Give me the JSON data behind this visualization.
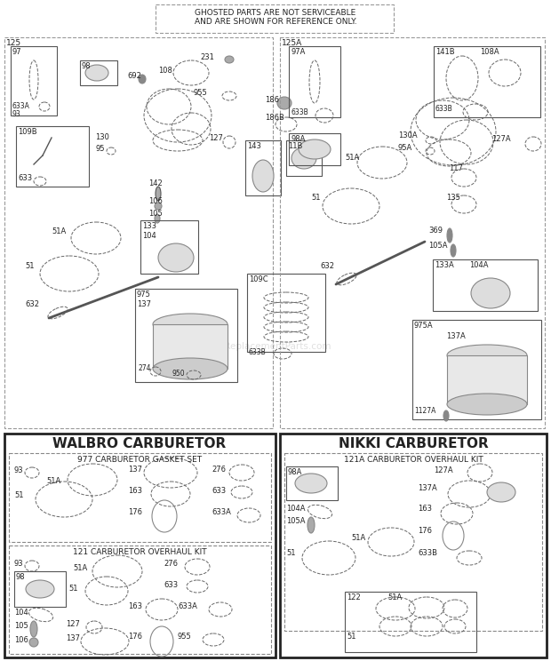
{
  "fig_width": 6.2,
  "fig_height": 7.44,
  "bg_color": "#ffffff",
  "text_color": "#222222",
  "notice_text1": "GHOSTED PARTS ARE NOT SERVICEABLE",
  "notice_text2": "AND ARE SHOWN FOR REFERENCE ONLY.",
  "walbro_title": "WALBRO CARBURETOR",
  "nikki_title": "NIKKI CARBURETOR",
  "walbro_gasket_sub": "977 CARBURETOR GASKET SET",
  "walbro_overhaul_sub": "121 CARBURETOR OVERHAUL KIT",
  "nikki_overhaul_sub": "121A CARBURETOR OVERHAUL KIT"
}
